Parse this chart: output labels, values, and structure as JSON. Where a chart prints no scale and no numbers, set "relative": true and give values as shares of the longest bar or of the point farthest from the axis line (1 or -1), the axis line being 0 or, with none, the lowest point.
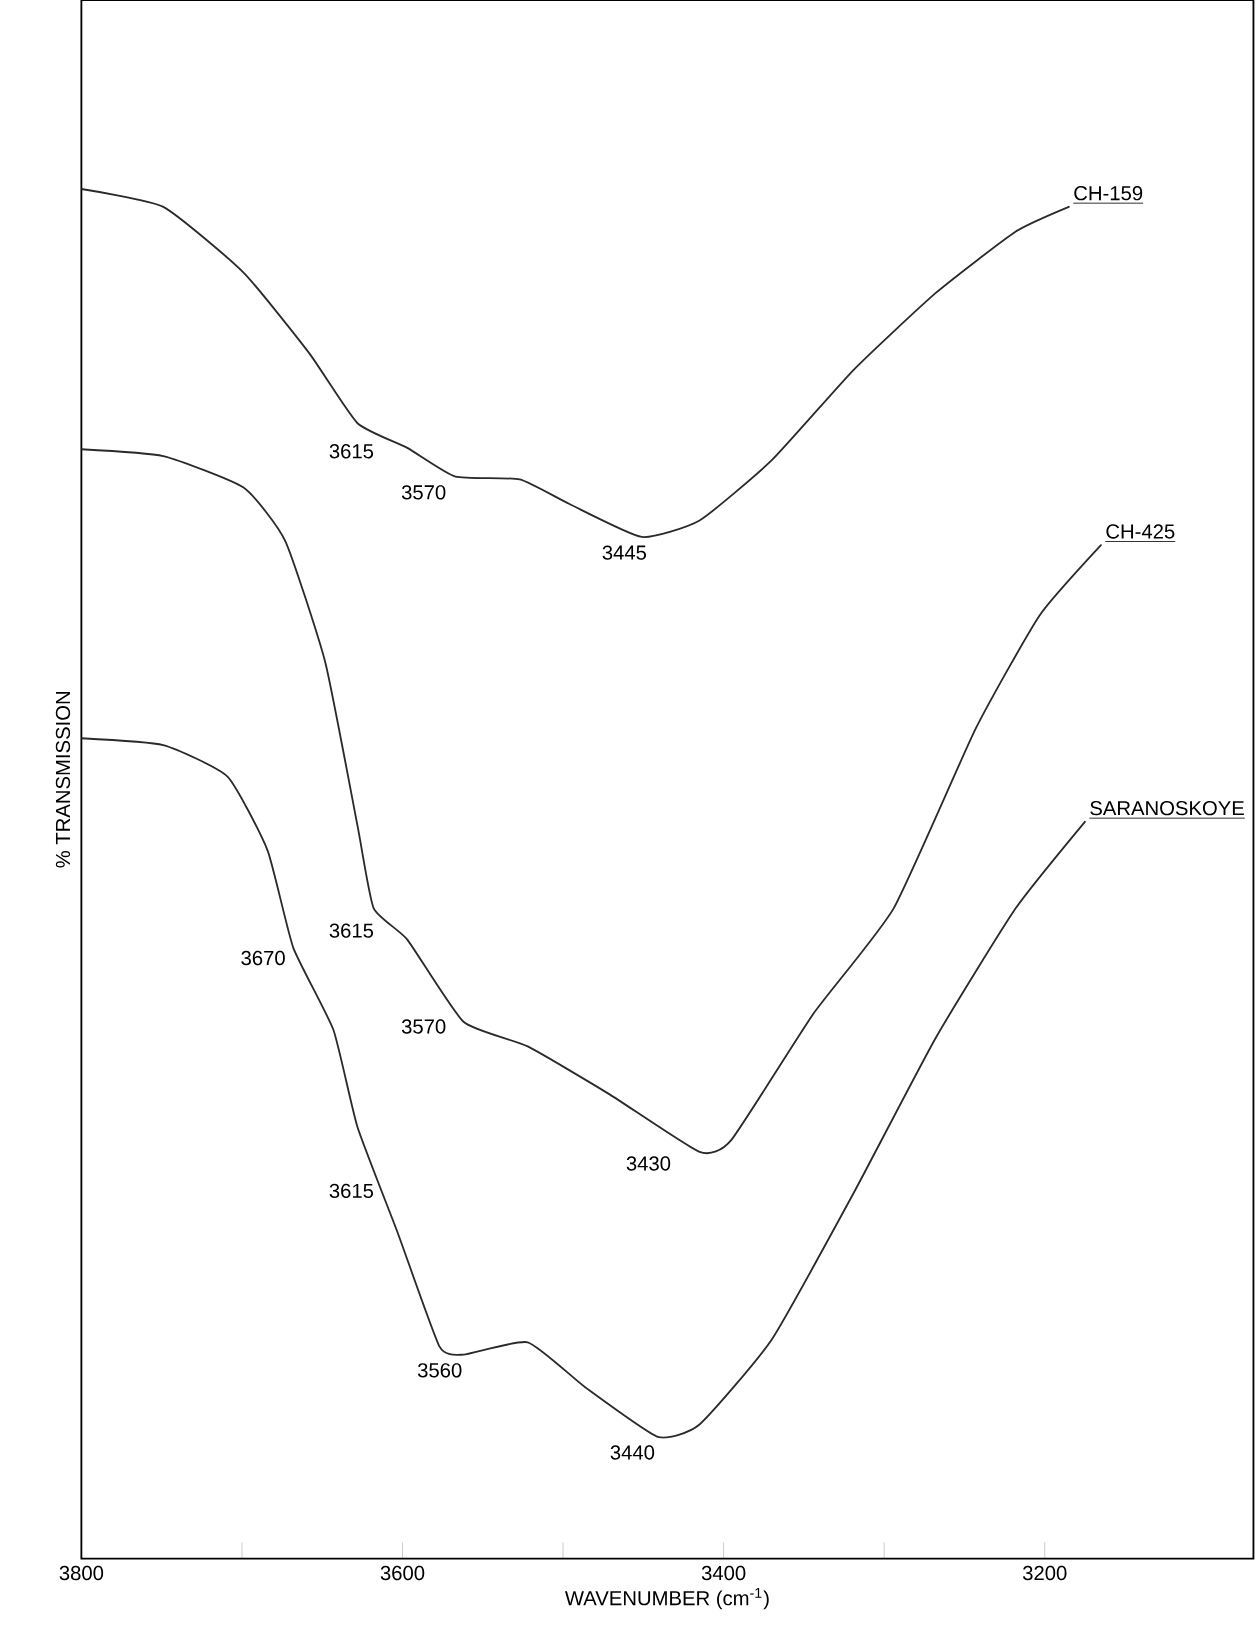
{
  "chart_data": {
    "type": "line",
    "relative": true,
    "xlabel": "WAVENUMBER (cm$^{-1}$)",
    "ylabel": "% TRANSMISSION",
    "xlim": [
      3800,
      3070
    ],
    "xticks": [
      3800,
      {
        "value": 3700,
        "label": null
      },
      3600,
      {
        "value": 3500,
        "label": null
      },
      3400,
      {
        "value": 3300,
        "label": null
      },
      3200
    ],
    "legend": false,
    "grid": false,
    "marker": "none",
    "line_style": "solid",
    "series": [
      {
        "name": "CH-159",
        "color": "#2a2a2a",
        "x": [
          3800,
          3749,
          3699,
          3658,
          3628,
          3597,
          3567,
          3527,
          3496,
          3451,
          3415,
          3370,
          3319,
          3268,
          3218,
          3185
        ],
        "values": [
          1.0,
          0.987,
          0.939,
          0.88,
          0.829,
          0.811,
          0.79,
          0.788,
          0.77,
          0.746,
          0.758,
          0.802,
          0.868,
          0.924,
          0.969,
          0.987
        ]
      },
      {
        "name": "CH-425",
        "color": "#2a2a2a",
        "x": [
          3800,
          3749,
          3699,
          3673,
          3648,
          3628,
          3618,
          3597,
          3562,
          3522,
          3471,
          3415,
          3395,
          3344,
          3294,
          3243,
          3203,
          3165
        ],
        "values": [
          0.81,
          0.805,
          0.782,
          0.743,
          0.654,
          0.535,
          0.475,
          0.452,
          0.392,
          0.374,
          0.339,
          0.297,
          0.306,
          0.398,
          0.475,
          0.606,
          0.689,
          0.74
        ]
      },
      {
        "name": "SARANOSKOYE",
        "color": "#2a2a2a",
        "x": [
          3800,
          3749,
          3709,
          3684,
          3668,
          3643,
          3628,
          3603,
          3577,
          3562,
          3522,
          3486,
          3441,
          3415,
          3370,
          3319,
          3268,
          3218,
          3175
        ],
        "values": [
          0.599,
          0.594,
          0.571,
          0.517,
          0.446,
          0.386,
          0.315,
          0.238,
          0.155,
          0.149,
          0.158,
          0.125,
          0.089,
          0.098,
          0.16,
          0.267,
          0.38,
          0.475,
          0.538
        ]
      }
    ],
    "annotations": [
      {
        "text": "3615",
        "x": 3615,
        "y": 0.82
      },
      {
        "text": "3570",
        "x": 3570,
        "y": 0.79
      },
      {
        "text": "3445",
        "x": 3445,
        "y": 0.746
      },
      {
        "text": "3615",
        "x": 3615,
        "y": 0.47
      },
      {
        "text": "3570",
        "x": 3570,
        "y": 0.4
      },
      {
        "text": "3430",
        "x": 3430,
        "y": 0.3
      },
      {
        "text": "3670",
        "x": 3670,
        "y": 0.45
      },
      {
        "text": "3615",
        "x": 3615,
        "y": 0.28
      },
      {
        "text": "3560",
        "x": 3560,
        "y": 0.149
      },
      {
        "text": "3440",
        "x": 3440,
        "y": 0.089
      }
    ]
  }
}
